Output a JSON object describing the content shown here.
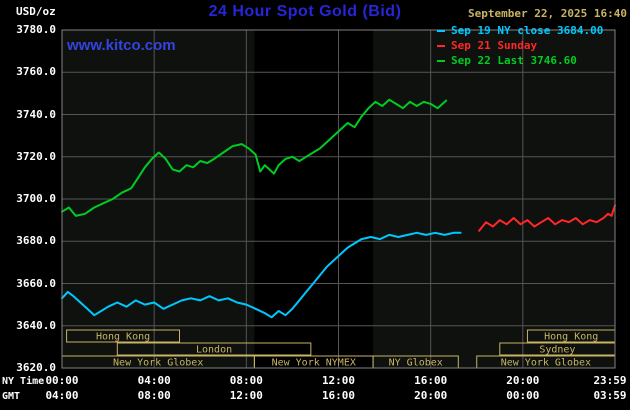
{
  "header": {
    "datetime": "September 22, 2025 16:40",
    "watermark": "www.kitco.com"
  },
  "legend": {
    "items": [
      {
        "label": "Sep 19 NY close 3684.00",
        "color": "#00c8ff"
      },
      {
        "label": "Sep 21 Sunday",
        "color": "#ff2828"
      },
      {
        "label": "Sep 22 Last 3746.60",
        "color": "#00cc22"
      }
    ]
  },
  "chart_data": {
    "type": "line",
    "title": "24 Hour Spot Gold (Bid)",
    "ylabel": "USD/oz",
    "xlim": [
      0,
      24
    ],
    "ylim": [
      3620,
      3780
    ],
    "y_grid_step": 20,
    "x_grid_step_hours": 4,
    "grid": true,
    "legend_position": "top-right",
    "x_axis_rows": {
      "ny": "NY Time",
      "gmt": "GMT"
    },
    "y_ticks": [
      {
        "label": "3780.0",
        "value": 3780
      },
      {
        "label": "3760.0",
        "value": 3760
      },
      {
        "label": "3740.0",
        "value": 3740
      },
      {
        "label": "3720.0",
        "value": 3720
      },
      {
        "label": "3700.0",
        "value": 3700
      },
      {
        "label": "3680.0",
        "value": 3680
      },
      {
        "label": "3660.0",
        "value": 3660
      },
      {
        "label": "3640.0",
        "value": 3640
      },
      {
        "label": "3620.0",
        "value": 3620
      }
    ],
    "x_ticks": [
      {
        "ny": "00:00",
        "gmt": "04:00",
        "hour": 0
      },
      {
        "ny": "04:00",
        "gmt": "08:00",
        "hour": 4
      },
      {
        "ny": "08:00",
        "gmt": "12:00",
        "hour": 8
      },
      {
        "ny": "12:00",
        "gmt": "16:00",
        "hour": 12
      },
      {
        "ny": "16:00",
        "gmt": "20:00",
        "hour": 16
      },
      {
        "ny": "20:00",
        "gmt": "00:00",
        "hour": 20
      },
      {
        "ny": "23:59",
        "gmt": "03:59",
        "hour": 24
      }
    ],
    "nymex_band": [
      8.35,
      13.5
    ],
    "sessions": [
      {
        "label": "Hong Kong",
        "row": 1,
        "start": 0.2,
        "end": 5.1
      },
      {
        "label": "London",
        "row": 2,
        "start": 2.4,
        "end": 10.8
      },
      {
        "label": "New York Globex",
        "row": 3,
        "start": 0.0,
        "end": 8.35
      },
      {
        "label": "New York NYMEX",
        "row": 3,
        "start": 8.35,
        "end": 13.5
      },
      {
        "label": "NY Globex",
        "row": 3,
        "start": 13.5,
        "end": 17.2
      },
      {
        "label": "Hong Kong",
        "row": 1,
        "start": 20.2,
        "end": 24
      },
      {
        "label": "Sydney",
        "row": 2,
        "start": 19.0,
        "end": 24
      },
      {
        "label": "New York Globex",
        "row": 3,
        "start": 18.0,
        "end": 24
      }
    ],
    "series": [
      {
        "name": "Sep 19 NY close",
        "color": "#00c8ff",
        "close": 3684.0,
        "points": [
          [
            0,
            3653
          ],
          [
            0.25,
            3656
          ],
          [
            0.5,
            3654
          ],
          [
            0.8,
            3651
          ],
          [
            1.1,
            3648
          ],
          [
            1.4,
            3645
          ],
          [
            1.7,
            3647
          ],
          [
            2,
            3649
          ],
          [
            2.4,
            3651
          ],
          [
            2.8,
            3649
          ],
          [
            3.2,
            3652
          ],
          [
            3.6,
            3650
          ],
          [
            4,
            3651
          ],
          [
            4.4,
            3648
          ],
          [
            4.8,
            3650
          ],
          [
            5.2,
            3652
          ],
          [
            5.6,
            3653
          ],
          [
            6,
            3652
          ],
          [
            6.4,
            3654
          ],
          [
            6.8,
            3652
          ],
          [
            7.2,
            3653
          ],
          [
            7.6,
            3651
          ],
          [
            8,
            3650
          ],
          [
            8.4,
            3648
          ],
          [
            8.8,
            3646
          ],
          [
            9.1,
            3644
          ],
          [
            9.4,
            3647
          ],
          [
            9.7,
            3645
          ],
          [
            10,
            3648
          ],
          [
            10.3,
            3652
          ],
          [
            10.6,
            3656
          ],
          [
            10.9,
            3660
          ],
          [
            11.2,
            3664
          ],
          [
            11.5,
            3668
          ],
          [
            11.8,
            3671
          ],
          [
            12.1,
            3674
          ],
          [
            12.4,
            3677
          ],
          [
            12.7,
            3679
          ],
          [
            13,
            3681
          ],
          [
            13.4,
            3682
          ],
          [
            13.8,
            3681
          ],
          [
            14.2,
            3683
          ],
          [
            14.6,
            3682
          ],
          [
            15,
            3683
          ],
          [
            15.4,
            3684
          ],
          [
            15.8,
            3683
          ],
          [
            16.2,
            3684
          ],
          [
            16.6,
            3683
          ],
          [
            17,
            3684
          ],
          [
            17.3,
            3684
          ]
        ]
      },
      {
        "name": "Sep 21 Sunday",
        "color": "#ff2828",
        "points": [
          [
            18.1,
            3685
          ],
          [
            18.4,
            3689
          ],
          [
            18.7,
            3687
          ],
          [
            19,
            3690
          ],
          [
            19.3,
            3688
          ],
          [
            19.6,
            3691
          ],
          [
            19.9,
            3688
          ],
          [
            20.2,
            3690
          ],
          [
            20.5,
            3687
          ],
          [
            20.8,
            3689
          ],
          [
            21.1,
            3691
          ],
          [
            21.4,
            3688
          ],
          [
            21.7,
            3690
          ],
          [
            22,
            3689
          ],
          [
            22.3,
            3691
          ],
          [
            22.6,
            3688
          ],
          [
            22.9,
            3690
          ],
          [
            23.2,
            3689
          ],
          [
            23.5,
            3691
          ],
          [
            23.7,
            3693
          ],
          [
            23.85,
            3692
          ],
          [
            24,
            3697
          ]
        ]
      },
      {
        "name": "Sep 22 Last",
        "color": "#00cc22",
        "last": 3746.6,
        "points": [
          [
            0,
            3694
          ],
          [
            0.3,
            3696
          ],
          [
            0.6,
            3692
          ],
          [
            1,
            3693
          ],
          [
            1.4,
            3696
          ],
          [
            1.8,
            3698
          ],
          [
            2.2,
            3700
          ],
          [
            2.6,
            3703
          ],
          [
            3,
            3705
          ],
          [
            3.3,
            3710
          ],
          [
            3.6,
            3715
          ],
          [
            3.9,
            3719
          ],
          [
            4.2,
            3722
          ],
          [
            4.5,
            3719
          ],
          [
            4.8,
            3714
          ],
          [
            5.1,
            3713
          ],
          [
            5.4,
            3716
          ],
          [
            5.7,
            3715
          ],
          [
            6,
            3718
          ],
          [
            6.3,
            3717
          ],
          [
            6.6,
            3719
          ],
          [
            7,
            3722
          ],
          [
            7.4,
            3725
          ],
          [
            7.8,
            3726
          ],
          [
            8.1,
            3724
          ],
          [
            8.4,
            3721
          ],
          [
            8.6,
            3713
          ],
          [
            8.8,
            3716
          ],
          [
            9,
            3714
          ],
          [
            9.2,
            3712
          ],
          [
            9.4,
            3716
          ],
          [
            9.7,
            3719
          ],
          [
            10,
            3720
          ],
          [
            10.3,
            3718
          ],
          [
            10.6,
            3720
          ],
          [
            10.9,
            3722
          ],
          [
            11.2,
            3724
          ],
          [
            11.5,
            3727
          ],
          [
            11.8,
            3730
          ],
          [
            12.1,
            3733
          ],
          [
            12.4,
            3736
          ],
          [
            12.7,
            3734
          ],
          [
            13,
            3739
          ],
          [
            13.3,
            3743
          ],
          [
            13.6,
            3746
          ],
          [
            13.9,
            3744
          ],
          [
            14.2,
            3747
          ],
          [
            14.5,
            3745
          ],
          [
            14.8,
            3743
          ],
          [
            15.1,
            3746
          ],
          [
            15.4,
            3744
          ],
          [
            15.7,
            3746
          ],
          [
            16,
            3745
          ],
          [
            16.3,
            3743
          ],
          [
            16.67,
            3746.6
          ]
        ]
      }
    ],
    "colors": {
      "background": "#000000",
      "plot_background": "#0e110e",
      "nymex_band": "#000000",
      "grid": "#555555",
      "border": "#828282",
      "tan": "#c8b464",
      "title_blue": "#2626d8",
      "watermark_blue": "#3344e0",
      "axis_text": "#ffffff"
    }
  }
}
